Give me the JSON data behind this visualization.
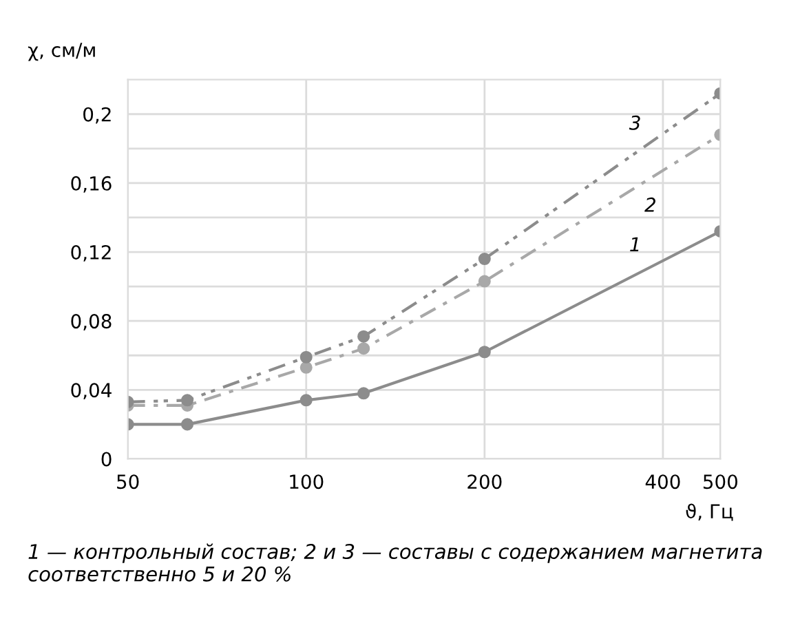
{
  "chart_data": {
    "type": "line",
    "ylabel": "χ, см/м",
    "xlabel": "ϑ, Гц",
    "x": [
      50,
      63,
      100,
      125,
      200,
      500
    ],
    "series": [
      {
        "name": "1",
        "color": "#8c8c8c",
        "line_style": "solid",
        "values": [
          0.02,
          0.02,
          0.034,
          0.038,
          0.062,
          0.132
        ]
      },
      {
        "name": "2",
        "color": "#a8a8a8",
        "line_style": "dashed",
        "values": [
          0.031,
          0.031,
          0.053,
          0.064,
          0.103,
          0.188
        ]
      },
      {
        "name": "3",
        "color": "#8c8c8c",
        "line_style": "dashed",
        "values": [
          0.033,
          0.034,
          0.059,
          0.071,
          0.116,
          0.212
        ]
      }
    ],
    "marker": "circle",
    "log": "x",
    "grid": true,
    "xlim": [
      50,
      500
    ],
    "xticks": [
      50,
      100,
      200,
      400,
      500
    ],
    "ylim": [
      0,
      0.22
    ],
    "yticks": [
      0,
      {
        "value": 0.02,
        "label": null
      },
      {
        "value": 0.04,
        "label": "0,04"
      },
      {
        "value": 0.06,
        "label": null
      },
      {
        "value": 0.08,
        "label": "0,08"
      },
      {
        "value": 0.1,
        "label": null
      },
      {
        "value": 0.12,
        "label": "0,12"
      },
      {
        "value": 0.14,
        "label": null
      },
      {
        "value": 0.16,
        "label": "0,16"
      },
      {
        "value": 0.18,
        "label": null
      },
      {
        "value": 0.2,
        "label": "0,2"
      }
    ],
    "annotations": [
      "1 — контрольный состав; 2 и 3 — составы с содержанием магнетита соответственно 5 и 20 %"
    ]
  }
}
